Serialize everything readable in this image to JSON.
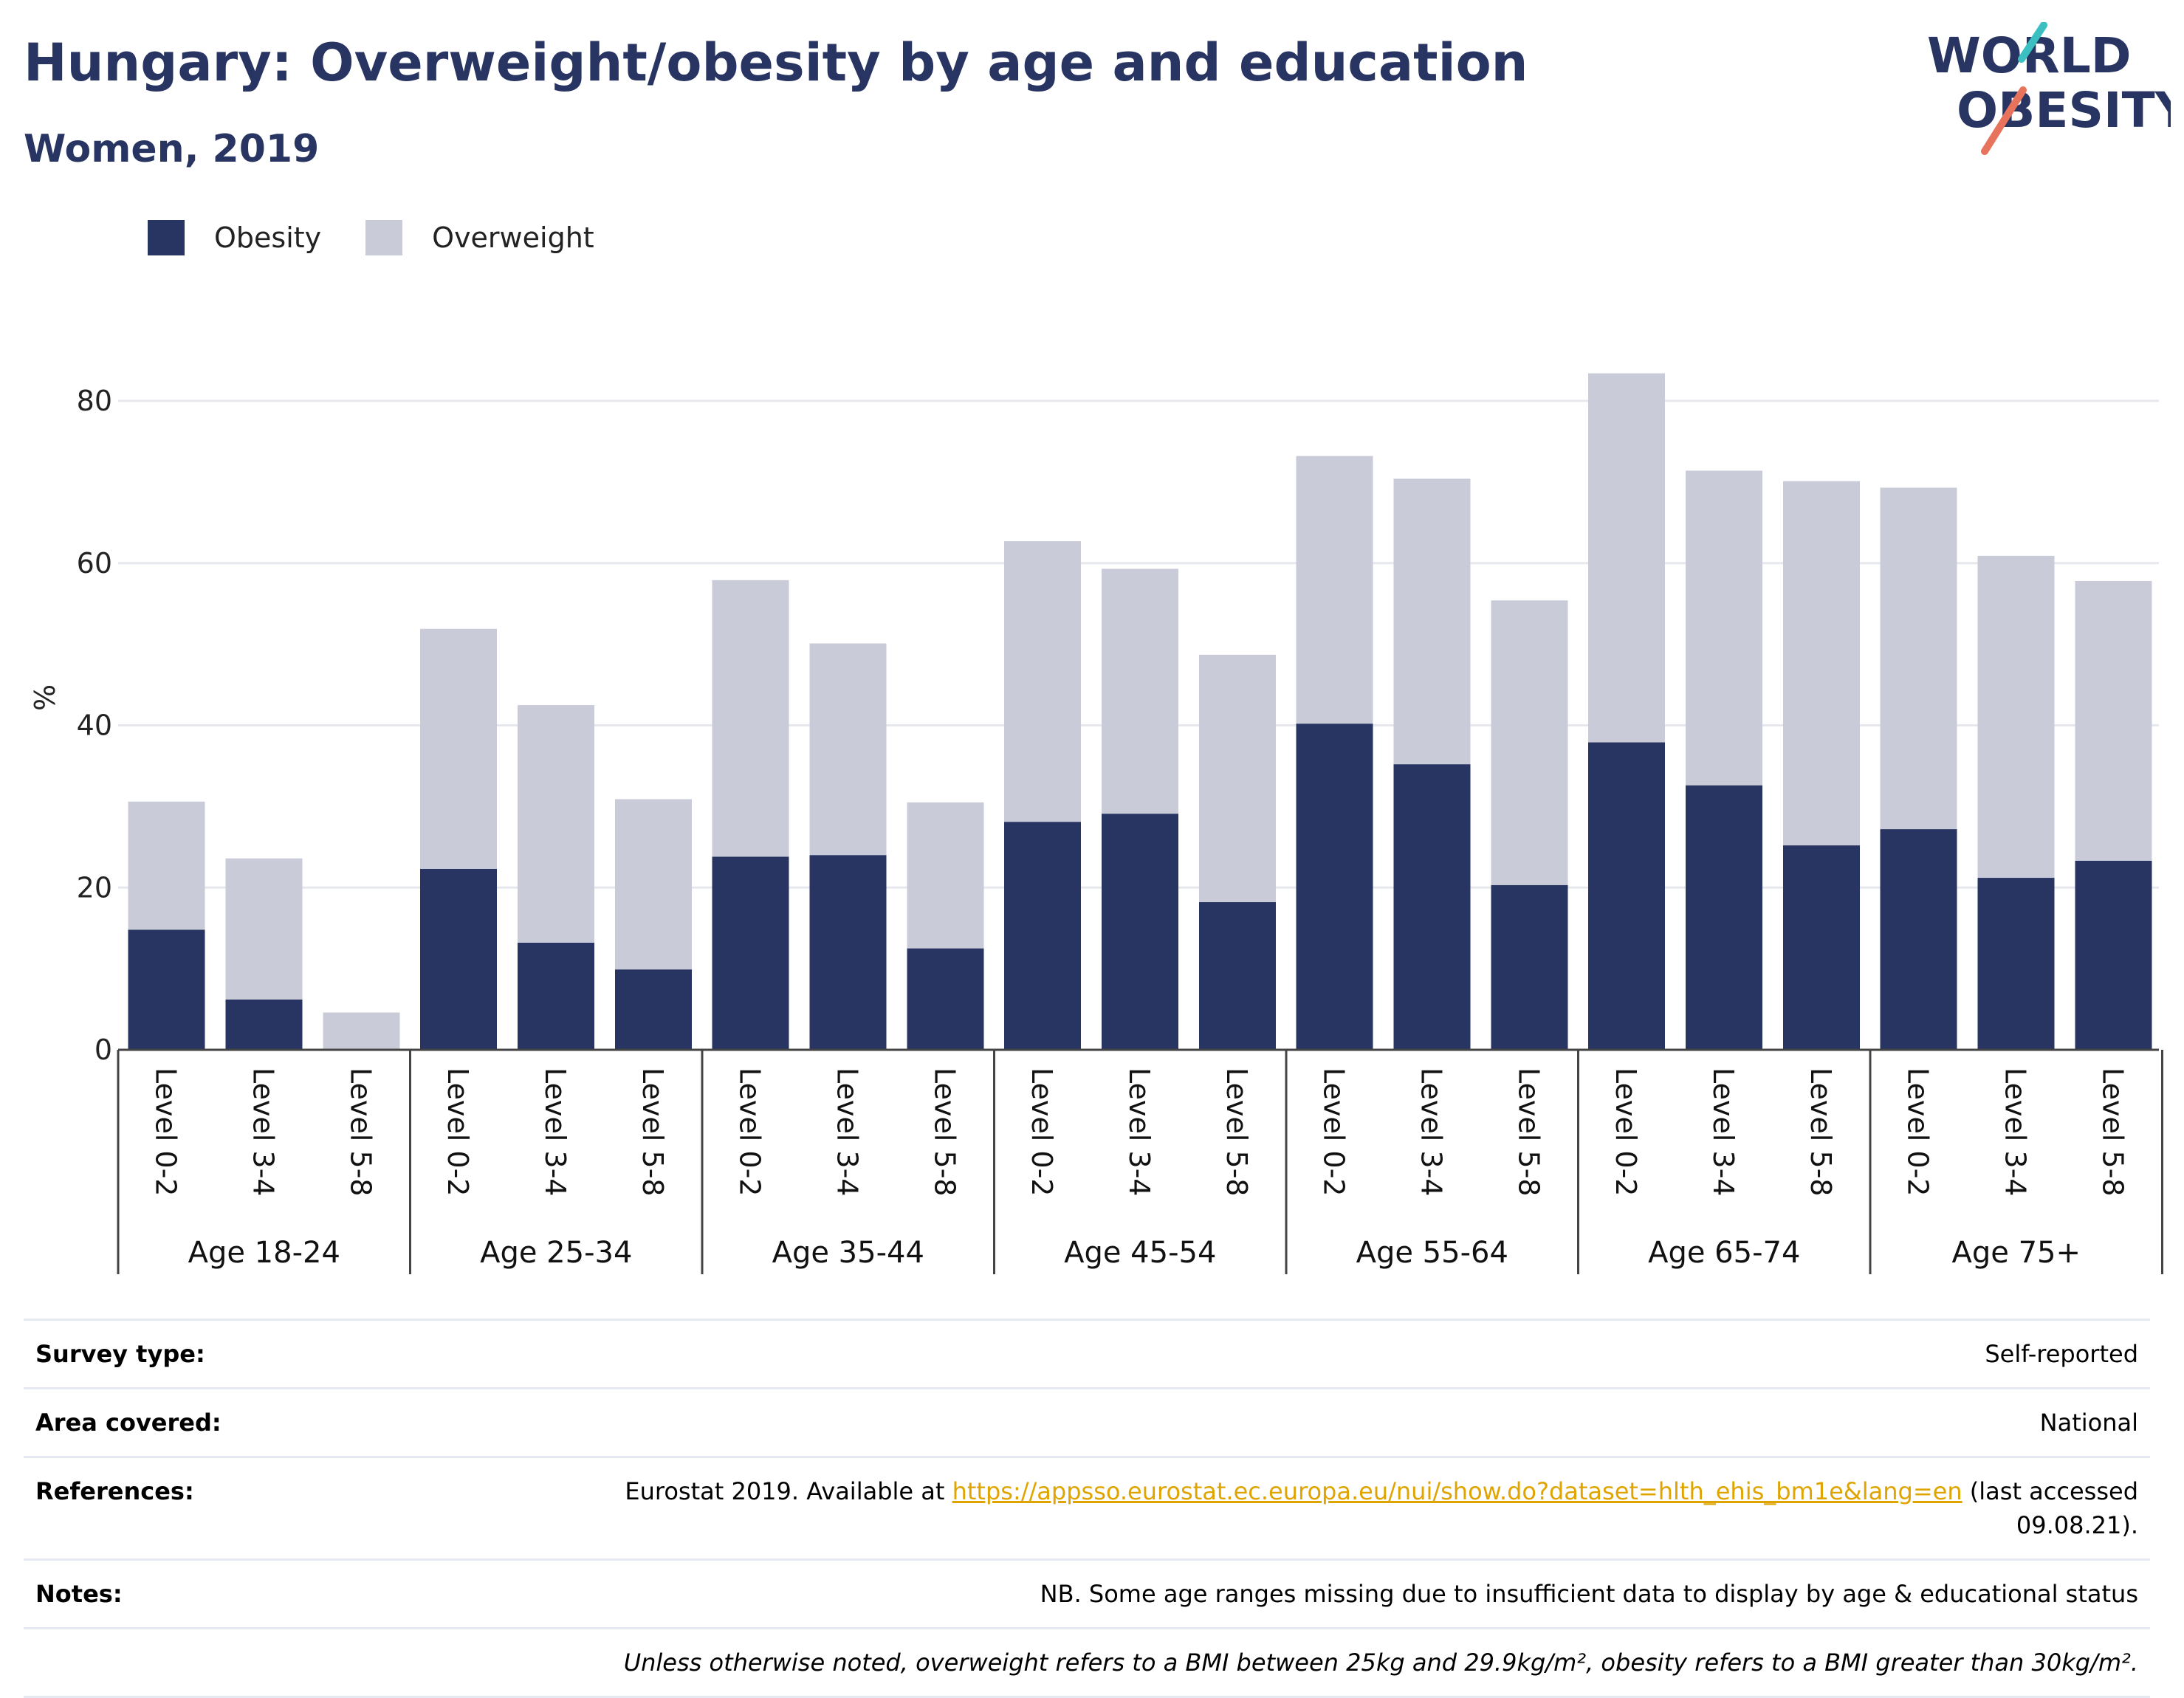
{
  "header": {
    "title": "Hungary: Overweight/obesity by age and education",
    "subtitle": "Women, 2019"
  },
  "logo": {
    "line1": "WORLD",
    "line2": "OBESITY",
    "accent_teal": "#3cbfc0",
    "accent_coral": "#e8735d",
    "text_color": "#283461"
  },
  "legend": [
    {
      "label": "Obesity",
      "color": "#283461"
    },
    {
      "label": "Overweight",
      "color": "#c9ccd8"
    }
  ],
  "chart_data": {
    "type": "bar",
    "stacked": true,
    "ylabel": "%",
    "ylim": [
      0,
      90
    ],
    "yticks": [
      0,
      20,
      40,
      60,
      80
    ],
    "grid": true,
    "legend_position": "top-left",
    "groups": [
      "Age 18-24",
      "Age 25-34",
      "Age 35-44",
      "Age 45-54",
      "Age 55-64",
      "Age 65-74",
      "Age 75+"
    ],
    "levels": [
      "Level 0-2",
      "Level 3-4",
      "Level 5-8"
    ],
    "series": [
      {
        "name": "Obesity",
        "color": "#283461",
        "values": [
          14.8,
          6.2,
          0,
          22.3,
          13.2,
          9.9,
          23.8,
          24.0,
          12.5,
          28.1,
          29.1,
          18.2,
          40.2,
          35.2,
          20.3,
          37.9,
          32.6,
          25.2,
          27.2,
          21.2,
          23.3
        ]
      },
      {
        "name": "Overweight",
        "color": "#c9ccd8",
        "values": [
          15.8,
          17.4,
          4.6,
          29.6,
          29.3,
          21.0,
          34.1,
          26.1,
          18.0,
          34.6,
          30.2,
          30.5,
          33.0,
          35.2,
          35.1,
          45.5,
          38.8,
          44.9,
          42.1,
          39.7,
          34.5
        ]
      }
    ]
  },
  "info": {
    "survey_type": {
      "label": "Survey type:",
      "value": "Self-reported"
    },
    "area_covered": {
      "label": "Area covered:",
      "value": "National"
    },
    "references": {
      "label": "References:",
      "prefix": "Eurostat 2019. Available at ",
      "link": "https://appsso.eurostat.ec.europa.eu/nui/show.do?dataset=hlth_ehis_bm1e&lang=en",
      "suffix": " (last accessed 09.08.21)."
    },
    "notes": {
      "label": "Notes:",
      "value": "NB. Some age ranges missing due to insufficient data to display by age & educational status"
    },
    "definition": "Unless otherwise noted, overweight refers to a BMI between 25kg and 29.9kg/m², obesity refers to a BMI greater than 30kg/m²."
  }
}
